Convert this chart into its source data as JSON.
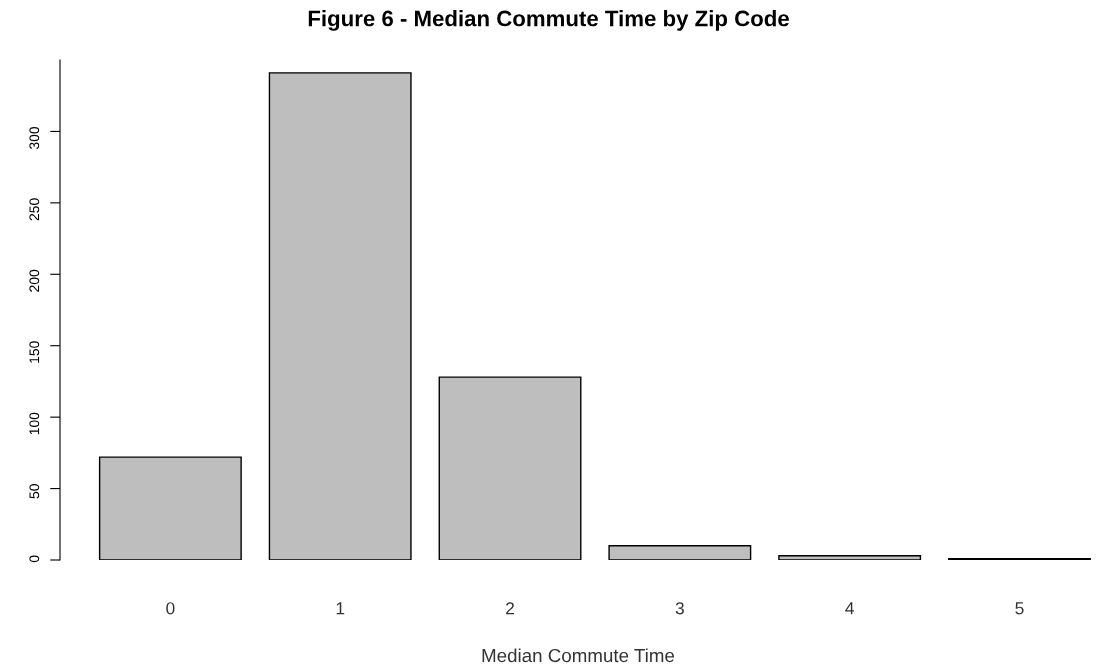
{
  "chart_data": {
    "type": "bar",
    "title": "Figure 6 - Median Commute Time by Zip Code",
    "xlabel": "Median Commute Time",
    "categories": [
      "0",
      "1",
      "2",
      "3",
      "4",
      "5"
    ],
    "values": [
      72,
      341,
      128,
      10,
      3,
      1
    ],
    "color": "#bebebe",
    "ylim": [
      0,
      350
    ],
    "yticks": [
      0,
      50,
      100,
      150,
      200,
      250,
      300
    ],
    "grid": false,
    "legend": false
  }
}
